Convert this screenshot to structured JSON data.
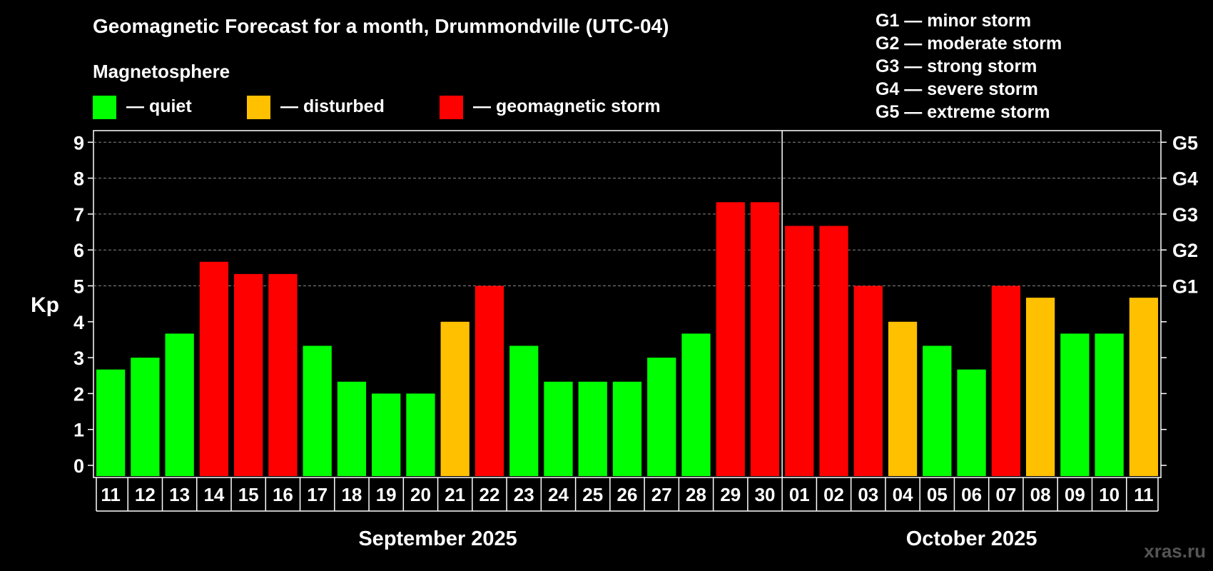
{
  "title": "Geomagnetic Forecast for a month, Drummondville (UTC-04)",
  "legend_title": "Magnetosphere",
  "legend_items": [
    {
      "label": "— quiet",
      "color": "#00ff00"
    },
    {
      "label": "— disturbed",
      "color": "#ffc000"
    },
    {
      "label": "— geomagnetic storm",
      "color": "#ff0000"
    }
  ],
  "storm_scale": [
    "G1 — minor storm",
    "G2 — moderate storm",
    "G3 — strong storm",
    "G4 — severe storm",
    "G5 — extreme storm"
  ],
  "watermark": "xras.ru",
  "chart_data": {
    "type": "bar",
    "ylabel": "Kp",
    "ylim": [
      0,
      9
    ],
    "yticks": [
      "0",
      "1",
      "2",
      "3",
      "4",
      "5",
      "6",
      "7",
      "8",
      "9"
    ],
    "right_axis": [
      {
        "value": 5,
        "label": "G1"
      },
      {
        "value": 6,
        "label": "G2"
      },
      {
        "value": 7,
        "label": "G3"
      },
      {
        "value": 8,
        "label": "G4"
      },
      {
        "value": 9,
        "label": "G5"
      }
    ],
    "grid": true,
    "categories": [
      "11",
      "12",
      "13",
      "14",
      "15",
      "16",
      "17",
      "18",
      "19",
      "20",
      "21",
      "22",
      "23",
      "24",
      "25",
      "26",
      "27",
      "28",
      "29",
      "30",
      "01",
      "02",
      "03",
      "04",
      "05",
      "06",
      "07",
      "08",
      "09",
      "10",
      "11"
    ],
    "values": [
      2.67,
      3.0,
      3.67,
      5.67,
      5.33,
      5.33,
      3.33,
      2.33,
      2.0,
      2.0,
      4.0,
      5.0,
      3.33,
      2.33,
      2.33,
      2.33,
      3.0,
      3.67,
      7.33,
      7.33,
      6.67,
      6.67,
      5.0,
      4.0,
      3.33,
      2.67,
      5.0,
      4.67,
      3.67,
      3.67,
      4.67
    ],
    "status": [
      "quiet",
      "quiet",
      "quiet",
      "storm",
      "storm",
      "storm",
      "quiet",
      "quiet",
      "quiet",
      "quiet",
      "disturbed",
      "storm",
      "quiet",
      "quiet",
      "quiet",
      "quiet",
      "quiet",
      "quiet",
      "storm",
      "storm",
      "storm",
      "storm",
      "storm",
      "disturbed",
      "quiet",
      "quiet",
      "storm",
      "disturbed",
      "quiet",
      "quiet",
      "disturbed"
    ],
    "status_colors": {
      "quiet": "#00ff00",
      "disturbed": "#ffc000",
      "storm": "#ff0000"
    },
    "months": [
      {
        "label": "September 2025",
        "count": 20
      },
      {
        "label": "October 2025",
        "count": 11
      }
    ]
  }
}
